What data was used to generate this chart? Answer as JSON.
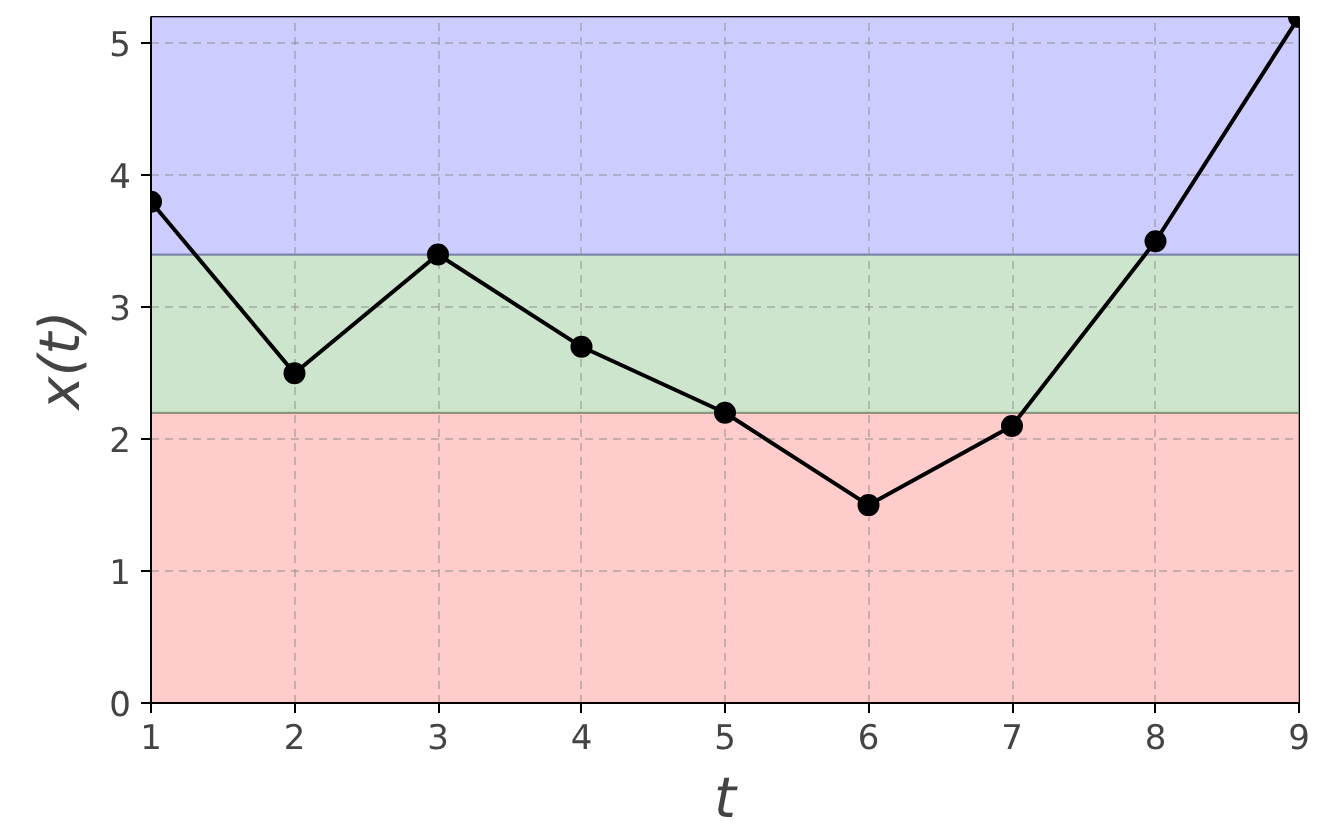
{
  "chart_data": {
    "type": "line",
    "xlabel": "t",
    "ylabel": "x(t)",
    "x": [
      1,
      2,
      3,
      4,
      5,
      6,
      7,
      8,
      9
    ],
    "series": [
      {
        "color": "#000000",
        "values": [
          3.8,
          2.5,
          3.4,
          2.7,
          2.2,
          1.5,
          2.1,
          3.5,
          5.2
        ]
      }
    ],
    "xlim": [
      1,
      9
    ],
    "ylim": [
      0,
      5.2
    ],
    "xticks": [
      1,
      2,
      3,
      4,
      5,
      6,
      7,
      8,
      9
    ],
    "yticks": [
      0,
      1,
      2,
      3,
      4,
      5
    ],
    "bands": [
      {
        "axis": "y",
        "from": 0,
        "to": 2.2,
        "color": "#ffcccc"
      },
      {
        "axis": "y",
        "from": 2.2,
        "to": 3.4,
        "color": "#cce5cc"
      },
      {
        "axis": "y",
        "from": 3.4,
        "to": 5.2,
        "color": "#ccccff"
      }
    ],
    "grid": true,
    "marker": "circle",
    "line_style": "solid"
  }
}
